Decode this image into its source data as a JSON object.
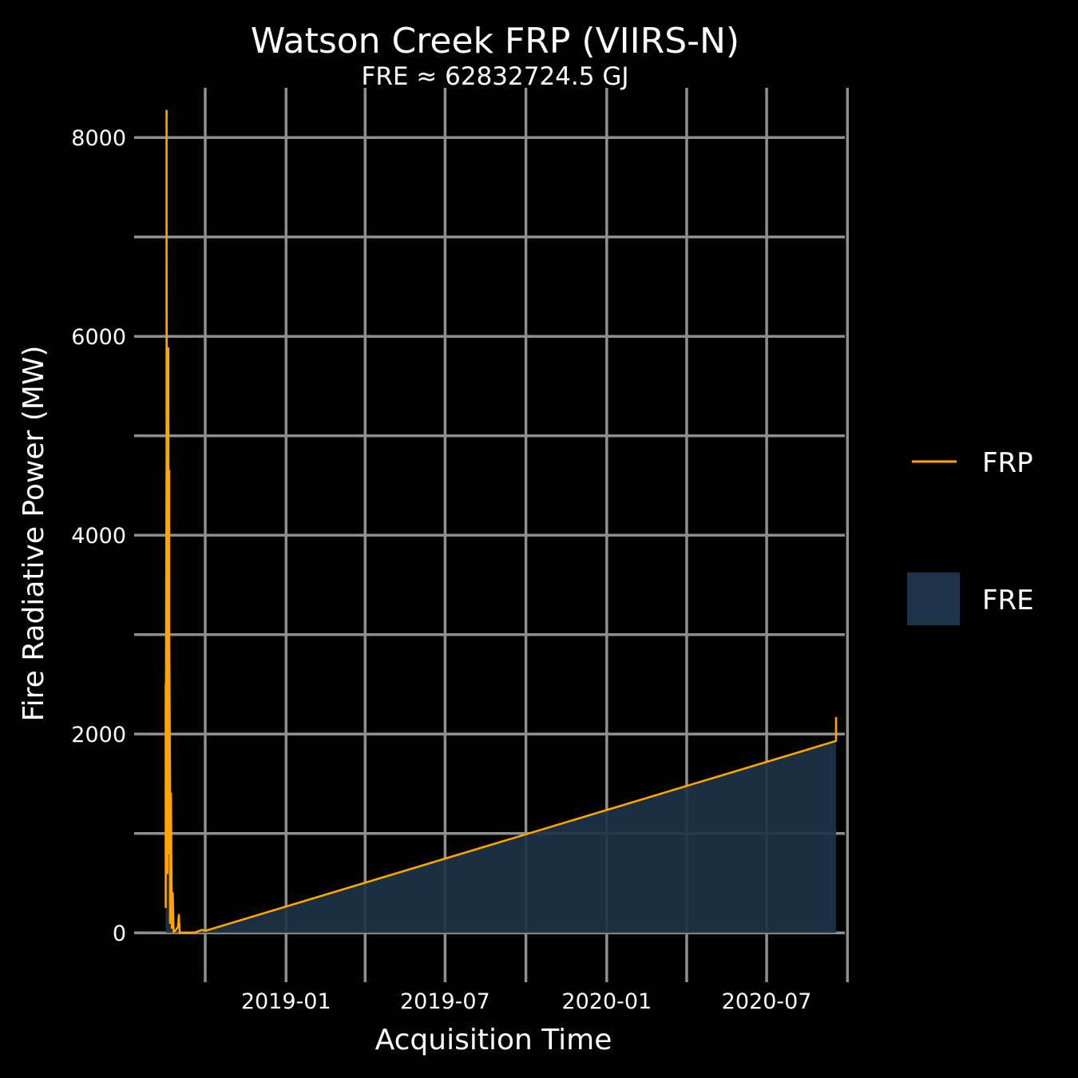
{
  "chart_data": {
    "type": "area",
    "title": "Watson Creek FRP (VIIRS-N)",
    "subtitle": "FRE ≈ 62832724.5 GJ",
    "xlabel": "Acquisition Time",
    "ylabel": "Fire Radiative Power (MW)",
    "x_scale": "date",
    "xlim": [
      "2018-07-23",
      "2020-09-28"
    ],
    "ylim": [
      -400,
      8500
    ],
    "x_ticks": [
      "2019-01",
      "2019-07",
      "2020-01",
      "2020-07"
    ],
    "x_tick_dates": [
      "2019-01-01",
      "2019-07-01",
      "2020-01-01",
      "2020-07-01"
    ],
    "x_minor_dates": [
      "2018-10-01",
      "2019-04-01",
      "2019-10-01",
      "2020-04-01",
      "2020-10-01"
    ],
    "y_ticks": [
      0,
      2000,
      4000,
      6000,
      8000
    ],
    "y_minor": [
      1000,
      3000,
      5000,
      7000
    ],
    "grid": true,
    "legend_position": "right",
    "series": [
      {
        "name": "FRP",
        "kind": "line",
        "color": "#FFA500",
        "points": [
          [
            "2018-08-17",
            250
          ],
          [
            "2018-08-17",
            2500
          ],
          [
            "2018-08-17",
            1300
          ],
          [
            "2018-08-18",
            4850
          ],
          [
            "2018-08-18",
            8270
          ],
          [
            "2018-08-18",
            3000
          ],
          [
            "2018-08-18",
            6900
          ],
          [
            "2018-08-19",
            1700
          ],
          [
            "2018-08-19",
            5200
          ],
          [
            "2018-08-19",
            600
          ],
          [
            "2018-08-20",
            5880
          ],
          [
            "2018-08-20",
            2500
          ],
          [
            "2018-08-20",
            5300
          ],
          [
            "2018-08-21",
            800
          ],
          [
            "2018-08-21",
            4650
          ],
          [
            "2018-08-21",
            3000
          ],
          [
            "2018-08-22",
            1400
          ],
          [
            "2018-08-22",
            100
          ],
          [
            "2018-08-23",
            1400
          ],
          [
            "2018-08-24",
            50
          ],
          [
            "2018-08-25",
            400
          ],
          [
            "2018-08-26",
            10
          ],
          [
            "2018-08-28",
            20
          ],
          [
            "2018-08-31",
            60
          ],
          [
            "2018-09-01",
            180
          ],
          [
            "2018-09-02",
            0
          ],
          [
            "2018-09-10",
            0
          ],
          [
            "2018-09-20",
            5
          ],
          [
            "2018-09-27",
            30
          ],
          [
            "2018-10-01",
            20
          ],
          [
            "2020-09-18",
            1930
          ],
          [
            "2020-09-18",
            2170
          ]
        ]
      },
      {
        "name": "FRE",
        "kind": "area",
        "color": "#1D3348",
        "points": [
          [
            "2018-08-17",
            300
          ],
          [
            "2018-08-17",
            2400
          ],
          [
            "2018-08-18",
            4800
          ],
          [
            "2018-08-19",
            1600
          ],
          [
            "2018-08-20",
            2400
          ],
          [
            "2018-08-21",
            800
          ],
          [
            "2018-08-22",
            100
          ],
          [
            "2018-08-24",
            30
          ],
          [
            "2018-09-02",
            0
          ],
          [
            "2018-09-27",
            20
          ],
          [
            "2018-10-01",
            20
          ],
          [
            "2020-09-18",
            1920
          ]
        ]
      }
    ]
  }
}
